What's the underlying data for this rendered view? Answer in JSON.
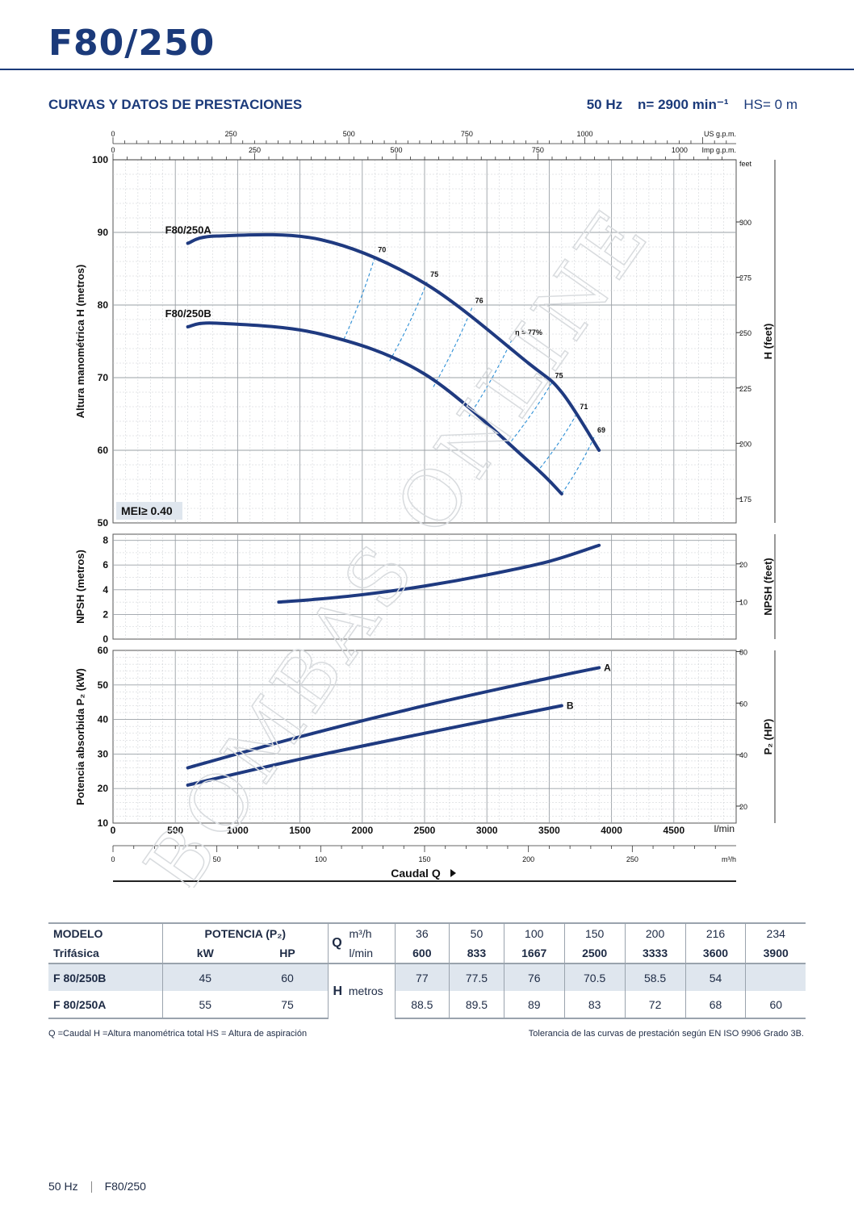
{
  "header": {
    "model_title": "F80/250",
    "section_title": "CURVAS Y DATOS DE PRESTACIONES",
    "freq": "50 Hz",
    "speed": "n= 2900 min⁻¹",
    "hs": "HS= 0 m"
  },
  "watermark": "BOMBAS ONLINE",
  "chart_data": {
    "type": "line",
    "x_unit": "l/min",
    "xlim": [
      0,
      5000
    ],
    "x_ticks": [
      0,
      500,
      1000,
      1500,
      2000,
      2500,
      3000,
      3500,
      4000,
      4500
    ],
    "secondary_x_axes": [
      {
        "label": "US g.p.m.",
        "ticks": [
          0,
          250,
          500,
          750,
          1000
        ]
      },
      {
        "label": "Imp g.p.m.",
        "ticks": [
          0,
          250,
          500,
          750,
          1000
        ]
      },
      {
        "label": "m³/h",
        "ticks": [
          0,
          50,
          100,
          150,
          200,
          250
        ]
      }
    ],
    "xlabel": "Caudal Q",
    "panels": [
      {
        "id": "head",
        "ylabel": "Altura manométrica H (metros)",
        "ylim": [
          50,
          100
        ],
        "y_ticks": [
          50,
          60,
          70,
          80,
          90,
          100
        ],
        "right_label": "H (feet)",
        "right_ticks": [
          175,
          200,
          225,
          250,
          275,
          300
        ],
        "right_unit": "feet",
        "badge": "MEI≥ 0.40",
        "series": [
          {
            "name": "F80/250A",
            "x": [
              600,
              833,
              1667,
              2500,
              3333,
              3600,
              3900
            ],
            "y": [
              88.5,
              89.5,
              89,
              83,
              72,
              68,
              60
            ]
          },
          {
            "name": "F80/250B",
            "x": [
              600,
              833,
              1667,
              2500,
              3333,
              3600
            ],
            "y": [
              77,
              77.5,
              76,
              70.5,
              58.5,
              54
            ]
          }
        ],
        "efficiency_lines": [
          {
            "label": "70",
            "a": [
              2100,
              86.6
            ],
            "b": [
              1850,
              75.2
            ]
          },
          {
            "label": "75",
            "a": [
              2520,
              83.2
            ],
            "b": [
              2220,
              72.3
            ]
          },
          {
            "label": "76",
            "a": [
              2880,
              79.6
            ],
            "b": [
              2560,
              68.4
            ]
          },
          {
            "label": "η = 77%",
            "a": [
              3200,
              75.2
            ],
            "b": [
              2850,
              64.5
            ]
          },
          {
            "label": "75",
            "a": [
              3520,
              69.3
            ],
            "b": [
              3170,
              60.7
            ]
          },
          {
            "label": "71",
            "a": [
              3720,
              65.0
            ],
            "b": [
              3420,
              57.4
            ]
          },
          {
            "label": "69",
            "a": [
              3860,
              61.8
            ],
            "b": [
              3600,
              54.0
            ]
          }
        ]
      },
      {
        "id": "npsh",
        "ylabel": "NPSH (metros)",
        "ylim": [
          0,
          8.5
        ],
        "y_ticks": [
          0,
          2,
          4,
          6,
          8
        ],
        "right_label": "NPSH (feet)",
        "right_ticks": [
          10,
          20
        ],
        "series": [
          {
            "name": "NPSH",
            "x": [
              1330,
              1600,
              2000,
              2500,
              3000,
              3500,
              3900
            ],
            "y": [
              3.0,
              3.2,
              3.6,
              4.3,
              5.2,
              6.3,
              7.6
            ]
          }
        ]
      },
      {
        "id": "power",
        "ylabel": "Potencia absorbida P₂ (kW)",
        "ylim": [
          10,
          60
        ],
        "y_ticks": [
          10,
          20,
          30,
          40,
          50,
          60
        ],
        "right_label": "P₂ (HP)",
        "right_ticks": [
          20,
          40,
          60,
          80
        ],
        "series": [
          {
            "name": "A",
            "x": [
              600,
              1500,
              2500,
              3500,
              3900
            ],
            "y": [
              26,
              35,
              44,
              52,
              55
            ]
          },
          {
            "name": "B",
            "x": [
              600,
              1500,
              2500,
              3600
            ],
            "y": [
              21,
              28.5,
              36,
              44
            ]
          }
        ]
      }
    ]
  },
  "table": {
    "col_model": "MODELO",
    "col_model_sub": "Trifásica",
    "col_power": "POTENCIA (P₂)",
    "col_kw": "kW",
    "col_hp": "HP",
    "q_label": "Q",
    "unit_m3h": "m³/h",
    "unit_lmin": "l/min",
    "h_label": "H",
    "h_unit": "metros",
    "flow_m3h": [
      "36",
      "50",
      "100",
      "150",
      "200",
      "216",
      "234"
    ],
    "flow_lmin": [
      "600",
      "833",
      "1667",
      "2500",
      "3333",
      "3600",
      "3900"
    ],
    "rows": [
      {
        "model": "F 80/250B",
        "kw": "45",
        "hp": "60",
        "h": [
          "77",
          "77.5",
          "76",
          "70.5",
          "58.5",
          "54",
          ""
        ]
      },
      {
        "model": "F 80/250A",
        "kw": "55",
        "hp": "75",
        "h": [
          "88.5",
          "89.5",
          "89",
          "83",
          "72",
          "68",
          "60"
        ]
      }
    ]
  },
  "notes": {
    "legend": "Q =Caudal   H =Altura manométrica total   HS = Altura de aspiración",
    "tolerance": "Tolerancia de las curvas de prestación según EN ISO 9906 Grado 3B."
  },
  "footer": {
    "freq": "50 Hz",
    "model": "F80/250"
  },
  "colors": {
    "brand": "#1b3a7a",
    "curve": "#1f3a80",
    "eff_line": "#2d8fd6",
    "grid": "#c8ccd0",
    "table_shade": "#dfe6ee"
  }
}
